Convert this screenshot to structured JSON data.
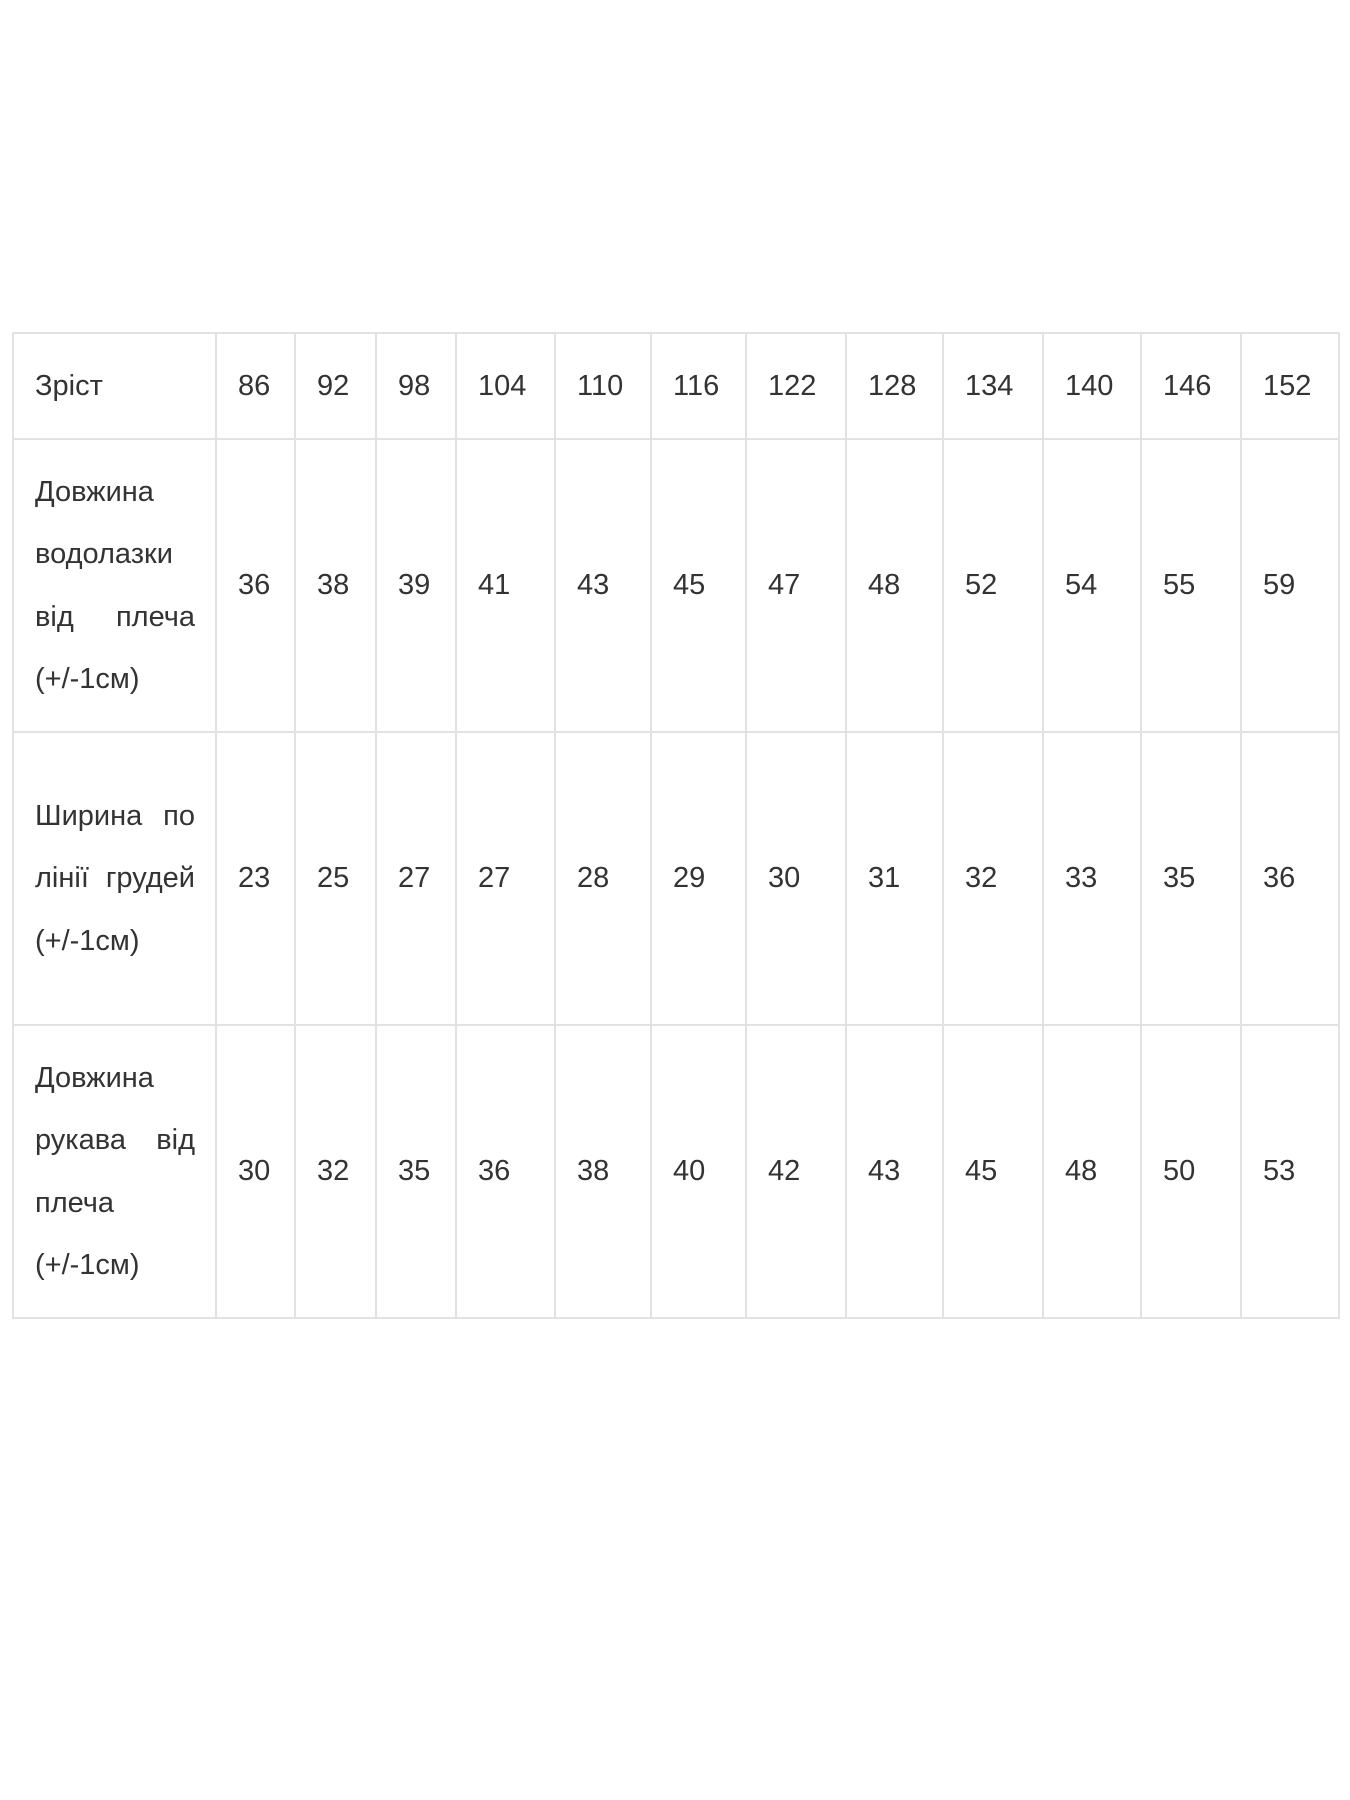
{
  "size_table": {
    "header": {
      "label": "Зріст",
      "sizes": [
        "86",
        "92",
        "98",
        "104",
        "110",
        "116",
        "122",
        "128",
        "134",
        "140",
        "146",
        "152"
      ]
    },
    "rows": [
      {
        "label": "Довжина водолазки від плеча (+/-1см)",
        "values": [
          "36",
          "38",
          "39",
          "41",
          "43",
          "45",
          "47",
          "48",
          "52",
          "54",
          "55",
          "59"
        ]
      },
      {
        "label": "Ширина по лінії грудей (+/-1см)",
        "values": [
          "23",
          "25",
          "27",
          "27",
          "28",
          "29",
          "30",
          "31",
          "32",
          "33",
          "35",
          "36"
        ]
      },
      {
        "label": "Довжина рукава від плеча (+/-1см)",
        "values": [
          "30",
          "32",
          "35",
          "36",
          "38",
          "40",
          "42",
          "43",
          "45",
          "48",
          "50",
          "53"
        ]
      }
    ]
  }
}
